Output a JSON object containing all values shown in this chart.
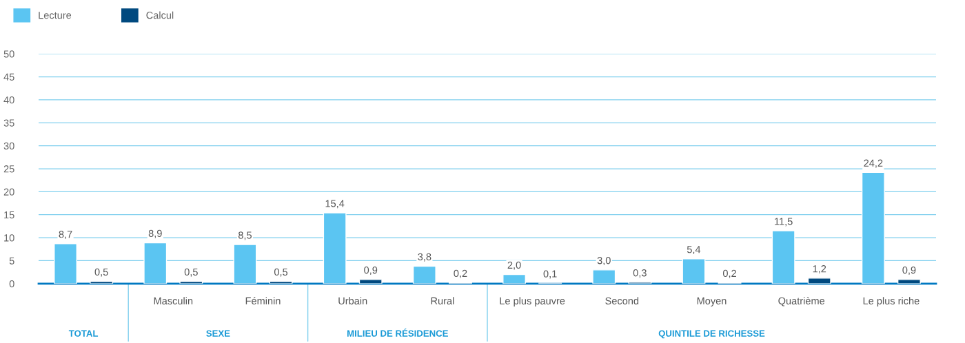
{
  "chart_data": {
    "type": "bar",
    "categories": [
      null,
      "Masculin",
      "Féminin",
      "Urbain",
      "Rural",
      "Le plus pauvre",
      "Second",
      "Moyen",
      "Quatrième",
      "Le plus riche"
    ],
    "series": [
      {
        "name": "Lecture",
        "color": "#5bc5f2",
        "values": [
          8.7,
          8.9,
          8.5,
          15.4,
          3.8,
          2.0,
          3.0,
          5.4,
          11.5,
          24.2
        ],
        "value_labels": [
          "8,7",
          "8,9",
          "8,5",
          "15,4",
          "3,8",
          "2,0",
          "3,0",
          "5,4",
          "11,5",
          "24,2"
        ]
      },
      {
        "name": "Calcul",
        "color": "#00497f",
        "values": [
          0.5,
          0.5,
          0.5,
          0.9,
          0.2,
          0.1,
          0.3,
          0.2,
          1.2,
          0.9
        ],
        "value_labels": [
          "0,5",
          "0,5",
          "0,5",
          "0,9",
          "0,2",
          "0,1",
          "0,3",
          "0,2",
          "1,2",
          "0,9"
        ]
      }
    ],
    "annotations": [
      "TOTAL",
      "SEXE",
      "MILIEU DE RÉSIDENCE",
      "QUINTILE DE RICHESSE"
    ],
    "ylim": [
      0,
      50
    ],
    "yticks": [
      0,
      5,
      10,
      15,
      20,
      25,
      30,
      35,
      40,
      45,
      50
    ],
    "grid": "y",
    "legend": "top left"
  }
}
